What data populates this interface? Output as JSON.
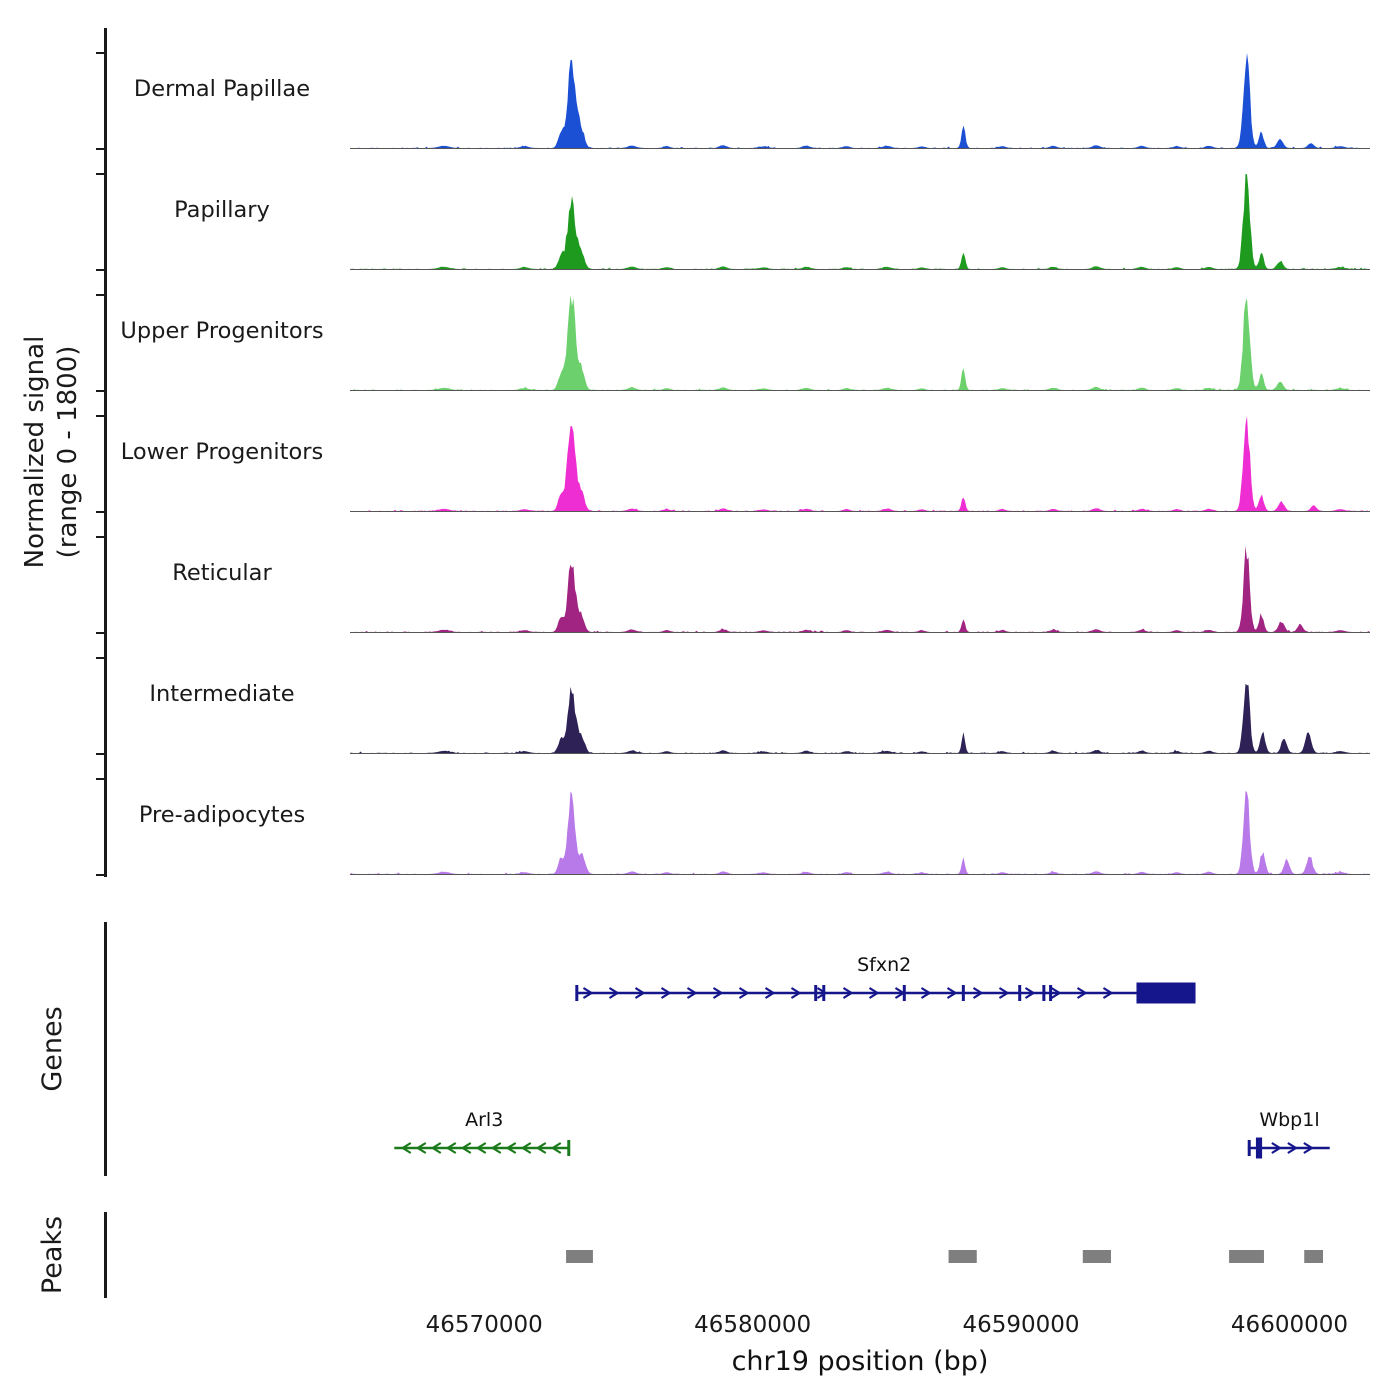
{
  "chart_data": {
    "type": "area",
    "title": "",
    "xlabel": "chr19 position (bp)",
    "ylabel": "Normalized signal\n(range 0 - 1800)",
    "genes_panel_label": "Genes",
    "peaks_panel_label": "Peaks",
    "region": {
      "chrom": "chr19",
      "start": 46565000,
      "end": 46603000
    },
    "signal_range": [
      0,
      1800
    ],
    "x_ticks": [
      {
        "bp": 46570000,
        "label": "46570000"
      },
      {
        "bp": 46580000,
        "label": "46580000"
      },
      {
        "bp": 46590000,
        "label": "46590000"
      },
      {
        "bp": 46600000,
        "label": "46600000"
      }
    ],
    "tracks": [
      {
        "label": "Dermal Papillae",
        "color": "#1c50d4",
        "seed": 11,
        "peaks": [
          [
            46572850,
            280,
            100
          ],
          [
            46573250,
            1560,
            150
          ],
          [
            46573600,
            380,
            120
          ],
          [
            46587850,
            430,
            70
          ],
          [
            46598400,
            1740,
            120
          ],
          [
            46598950,
            300,
            90
          ],
          [
            46599650,
            170,
            110
          ],
          [
            46600800,
            90,
            110
          ]
        ]
      },
      {
        "label": "Papillary",
        "color": "#1e9b1e",
        "seed": 22,
        "peaks": [
          [
            46572850,
            240,
            100
          ],
          [
            46573250,
            1280,
            150
          ],
          [
            46573620,
            300,
            120
          ],
          [
            46587850,
            330,
            70
          ],
          [
            46598400,
            1790,
            120
          ],
          [
            46598950,
            280,
            90
          ],
          [
            46599650,
            150,
            110
          ]
        ]
      },
      {
        "label": "Upper Progenitors",
        "color": "#6cd06c",
        "seed": 33,
        "peaks": [
          [
            46572850,
            300,
            100
          ],
          [
            46573250,
            1760,
            150
          ],
          [
            46573620,
            360,
            120
          ],
          [
            46587850,
            390,
            70
          ],
          [
            46598400,
            1780,
            120
          ],
          [
            46598950,
            300,
            90
          ],
          [
            46599650,
            160,
            110
          ]
        ]
      },
      {
        "label": "Lower Progenitors",
        "color": "#ee2ed2",
        "seed": 44,
        "peaks": [
          [
            46572850,
            300,
            100
          ],
          [
            46573250,
            1640,
            150
          ],
          [
            46573620,
            340,
            120
          ],
          [
            46587850,
            260,
            70
          ],
          [
            46598400,
            1750,
            120
          ],
          [
            46598950,
            320,
            90
          ],
          [
            46599700,
            180,
            110
          ],
          [
            46600900,
            110,
            100
          ]
        ]
      },
      {
        "label": "Reticular",
        "color": "#a12382",
        "seed": 55,
        "peaks": [
          [
            46572850,
            260,
            100
          ],
          [
            46573250,
            1300,
            140
          ],
          [
            46573600,
            320,
            120
          ],
          [
            46587850,
            240,
            65
          ],
          [
            46598400,
            1520,
            115
          ],
          [
            46598950,
            330,
            90
          ],
          [
            46599700,
            200,
            110
          ],
          [
            46600400,
            140,
            100
          ]
        ]
      },
      {
        "label": "Intermediate",
        "color": "#2d2156",
        "seed": 66,
        "peaks": [
          [
            46572850,
            260,
            100
          ],
          [
            46573250,
            1290,
            140
          ],
          [
            46573620,
            330,
            120
          ],
          [
            46587850,
            350,
            65
          ],
          [
            46598400,
            1400,
            115
          ],
          [
            46599000,
            380,
            95
          ],
          [
            46599800,
            280,
            100
          ],
          [
            46600700,
            380,
            110
          ]
        ]
      },
      {
        "label": "Pre-adipocytes",
        "color": "#b879e9",
        "seed": 77,
        "peaks": [
          [
            46572850,
            280,
            100
          ],
          [
            46573250,
            1480,
            140
          ],
          [
            46573650,
            350,
            120
          ],
          [
            46587850,
            290,
            65
          ],
          [
            46598400,
            1530,
            115
          ],
          [
            46599000,
            420,
            95
          ],
          [
            46599900,
            280,
            100
          ],
          [
            46600750,
            330,
            110
          ]
        ]
      }
    ],
    "common_bumps": [
      [
        46568500,
        40,
        200
      ],
      [
        46571500,
        35,
        150
      ],
      [
        46575500,
        45,
        150
      ],
      [
        46576800,
        35,
        120
      ],
      [
        46578900,
        50,
        130
      ],
      [
        46580400,
        30,
        150
      ],
      [
        46582000,
        40,
        140
      ],
      [
        46583500,
        35,
        120
      ],
      [
        46585000,
        40,
        150
      ],
      [
        46586300,
        30,
        120
      ],
      [
        46589300,
        35,
        120
      ],
      [
        46591200,
        40,
        130
      ],
      [
        46592800,
        50,
        140
      ],
      [
        46594500,
        40,
        130
      ],
      [
        46595800,
        35,
        120
      ],
      [
        46597000,
        40,
        130
      ],
      [
        46601900,
        35,
        150
      ]
    ],
    "genes": [
      {
        "name": "Sfxn2",
        "color": "#16168c",
        "strand": "+",
        "row": 0,
        "start": 46573400,
        "end": 46596500,
        "label_bp": 46584900,
        "chevron_step": 26,
        "exon_ticks": [
          46573450,
          46582350,
          46582650,
          46585650,
          46587850,
          46589950,
          46590850,
          46591100
        ],
        "thick_box": [
          46594300,
          46596500
        ]
      },
      {
        "name": "Arl3",
        "color": "#1b7a1b",
        "strand": "-",
        "row": 1,
        "start": 46566650,
        "end": 46573150,
        "label_bp": 46570000,
        "chevron_step": 15,
        "exon_ticks": [
          46573150
        ]
      },
      {
        "name": "Wbp1l",
        "color": "#16168c",
        "strand": "+",
        "row": 1,
        "start": 46598450,
        "end": 46601500,
        "label_bp": 46600000,
        "chevron_step": 16,
        "exon_ticks": [
          46598500
        ],
        "thick_box": [
          46598750,
          46598980
        ]
      }
    ],
    "peak_calls": [
      [
        46573050,
        46574050
      ],
      [
        46587300,
        46588350
      ],
      [
        46592300,
        46593350
      ],
      [
        46597750,
        46599050
      ],
      [
        46600550,
        46601250
      ]
    ],
    "peak_color": "#7f7f7f"
  }
}
